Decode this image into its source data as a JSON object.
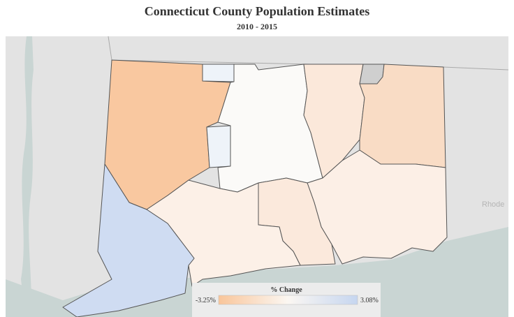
{
  "title": "Connecticut  County  Population  Estimates",
  "subtitle": "2010  -  2015",
  "basemap_label": "Rhode",
  "legend": {
    "title": "% Change",
    "min_label": "-3.25%",
    "max_label": "3.08%"
  }
}
